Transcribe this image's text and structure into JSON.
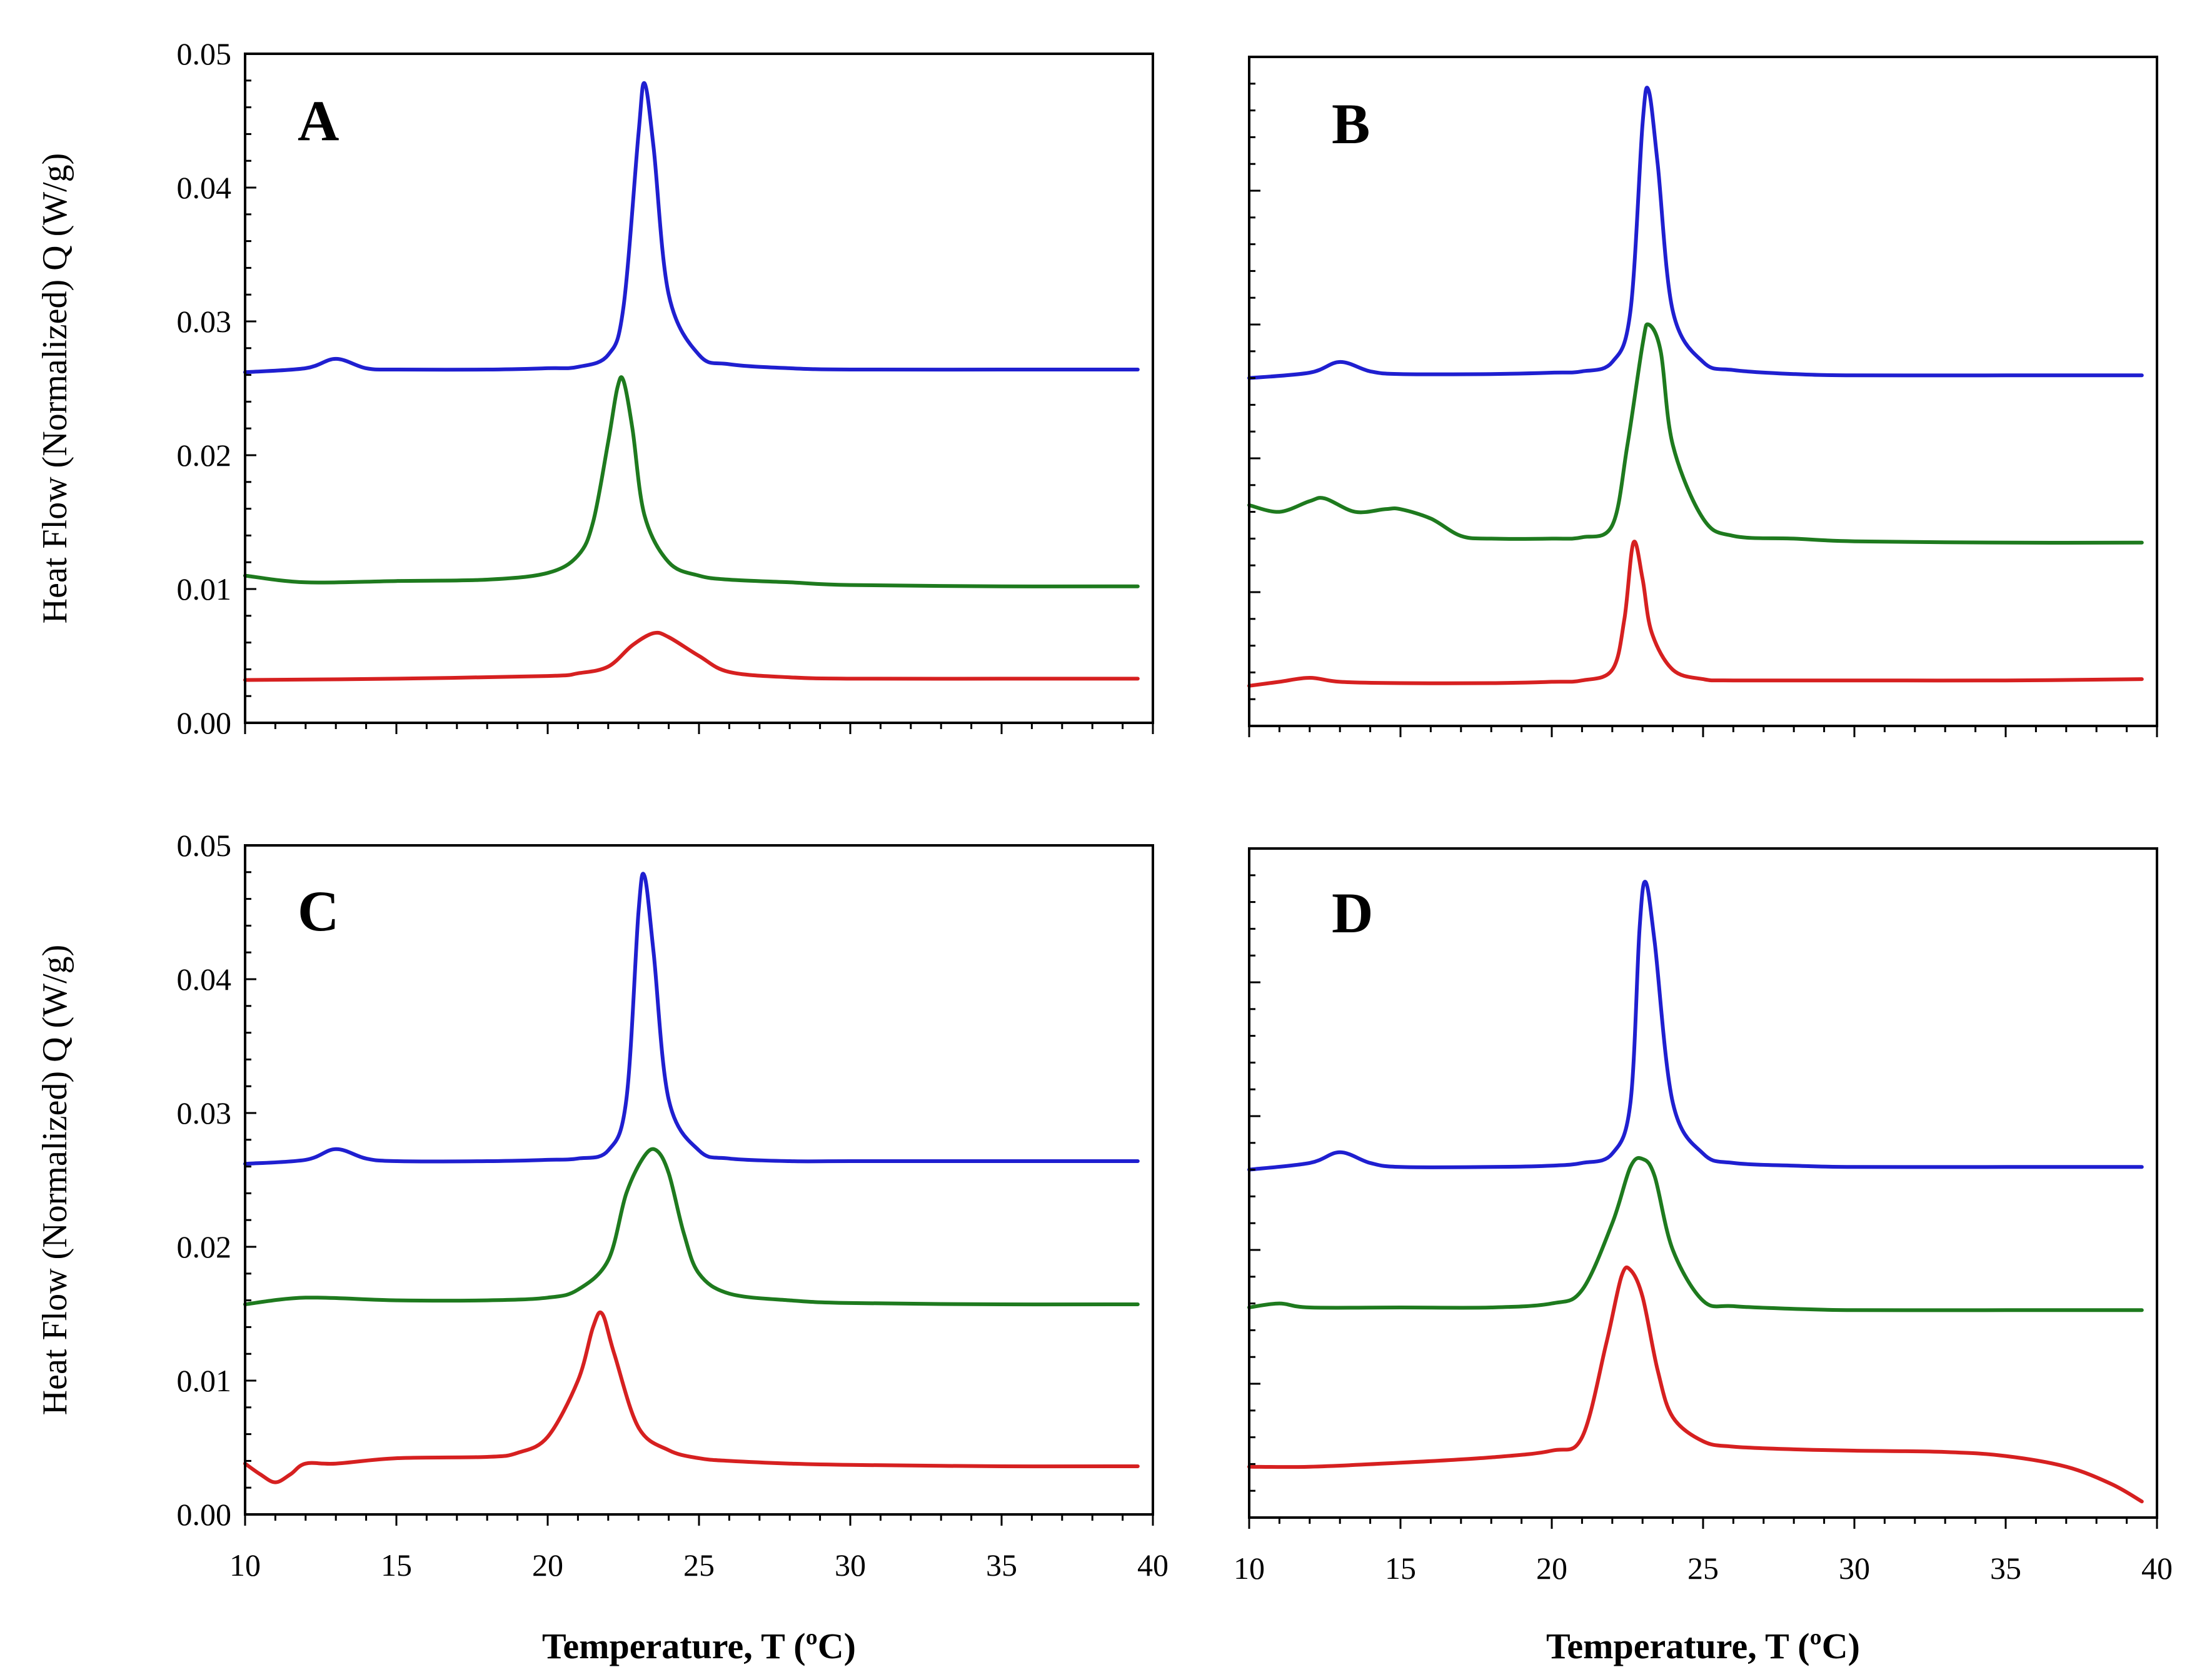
{
  "chart_data": [
    {
      "type": "line",
      "panel_label": "A",
      "xlabel": "",
      "ylabel": "Heat Flow (Normalized) Q (W/g)",
      "xlim": [
        10,
        40
      ],
      "ylim": [
        0,
        0.05
      ],
      "x_ticks": [],
      "y_ticks": [
        "0.00",
        "0.01",
        "0.02",
        "0.03",
        "0.04",
        "0.05"
      ],
      "series": [
        {
          "name": "blue",
          "color": "#1f1fd0",
          "x": [
            10,
            12,
            13,
            14,
            15,
            18,
            20,
            21,
            22,
            22.5,
            23,
            23.2,
            23.5,
            24,
            25,
            26,
            28,
            30,
            35,
            39.5
          ],
          "y": [
            0.0262,
            0.0265,
            0.0272,
            0.0265,
            0.0264,
            0.0264,
            0.0265,
            0.0266,
            0.0275,
            0.031,
            0.044,
            0.0478,
            0.043,
            0.032,
            0.0275,
            0.0268,
            0.0265,
            0.0264,
            0.0264,
            0.0264
          ]
        },
        {
          "name": "green",
          "color": "#1e7a1e",
          "x": [
            10,
            12,
            15,
            18,
            20,
            21,
            21.5,
            22,
            22.3,
            22.5,
            22.8,
            23.2,
            24,
            25,
            26,
            28,
            30,
            35,
            39.5
          ],
          "y": [
            0.011,
            0.0105,
            0.0106,
            0.0107,
            0.0112,
            0.0125,
            0.015,
            0.021,
            0.025,
            0.0256,
            0.022,
            0.0155,
            0.012,
            0.011,
            0.0107,
            0.0105,
            0.0103,
            0.0102,
            0.0102
          ]
        },
        {
          "name": "red",
          "color": "#d62020",
          "x": [
            10,
            15,
            20,
            21,
            22,
            22.8,
            23.5,
            24,
            25,
            26,
            28,
            30,
            35,
            39.5
          ],
          "y": [
            0.0032,
            0.0033,
            0.0035,
            0.0037,
            0.0042,
            0.0058,
            0.0067,
            0.0064,
            0.005,
            0.0038,
            0.0034,
            0.0033,
            0.0033,
            0.0033
          ]
        }
      ]
    },
    {
      "type": "line",
      "panel_label": "B",
      "xlabel": "",
      "ylabel": "",
      "xlim": [
        10,
        40
      ],
      "ylim": [
        0,
        0.05
      ],
      "x_ticks": [],
      "y_ticks": [],
      "series": [
        {
          "name": "blue",
          "color": "#1f1fd0",
          "x": [
            10,
            12,
            13,
            14,
            15,
            18,
            20,
            21,
            22,
            22.6,
            23.0,
            23.2,
            23.5,
            24,
            25,
            26,
            28,
            30,
            35,
            39.5
          ],
          "y": [
            0.026,
            0.0264,
            0.0272,
            0.0265,
            0.0263,
            0.0263,
            0.0264,
            0.0265,
            0.0272,
            0.031,
            0.045,
            0.0475,
            0.042,
            0.031,
            0.0272,
            0.0266,
            0.0263,
            0.0262,
            0.0262,
            0.0262
          ]
        },
        {
          "name": "green",
          "color": "#1e7a1e",
          "x": [
            10,
            11,
            12,
            12.5,
            13.5,
            14.5,
            15,
            16,
            17,
            18,
            20,
            21,
            22,
            22.5,
            23,
            23.2,
            23.6,
            24,
            25,
            26,
            28,
            30,
            35,
            39.5
          ],
          "y": [
            0.0165,
            0.016,
            0.0168,
            0.017,
            0.016,
            0.0162,
            0.0162,
            0.0155,
            0.0142,
            0.014,
            0.014,
            0.0141,
            0.015,
            0.021,
            0.0285,
            0.03,
            0.028,
            0.021,
            0.0155,
            0.0142,
            0.014,
            0.0138,
            0.0137,
            0.0137
          ]
        },
        {
          "name": "red",
          "color": "#d62020",
          "x": [
            10,
            11,
            12,
            13,
            15,
            18,
            20,
            21,
            22,
            22.4,
            22.7,
            23,
            23.3,
            24,
            25,
            26,
            30,
            35,
            39.5
          ],
          "y": [
            0.003,
            0.0033,
            0.0036,
            0.0033,
            0.0032,
            0.0032,
            0.0033,
            0.0034,
            0.0042,
            0.008,
            0.0137,
            0.011,
            0.007,
            0.0042,
            0.0035,
            0.0034,
            0.0034,
            0.0034,
            0.0035
          ]
        }
      ]
    },
    {
      "type": "line",
      "panel_label": "C",
      "xlabel": "Temperature, T (ºC)",
      "ylabel": "Heat Flow (Normalized) Q (W/g)",
      "xlim": [
        10,
        40
      ],
      "ylim": [
        0,
        0.05
      ],
      "x_ticks": [
        "10",
        "15",
        "20",
        "25",
        "30",
        "35",
        "40"
      ],
      "y_ticks": [
        "0.00",
        "0.01",
        "0.02",
        "0.03",
        "0.04",
        "0.05"
      ],
      "series": [
        {
          "name": "blue",
          "color": "#1f1fd0",
          "x": [
            10,
            12,
            13,
            14,
            15,
            18,
            20,
            21,
            22,
            22.6,
            23.0,
            23.2,
            23.5,
            24,
            25,
            26,
            28,
            30,
            35,
            39.5
          ],
          "y": [
            0.0262,
            0.0265,
            0.0273,
            0.0266,
            0.0264,
            0.0264,
            0.0265,
            0.0266,
            0.0272,
            0.031,
            0.045,
            0.0477,
            0.042,
            0.031,
            0.0272,
            0.0266,
            0.0264,
            0.0264,
            0.0264,
            0.0264
          ]
        },
        {
          "name": "green",
          "color": "#1e7a1e",
          "x": [
            10,
            12,
            15,
            18,
            20,
            21,
            22,
            22.6,
            23.2,
            23.6,
            24,
            24.5,
            25,
            26,
            28,
            30,
            35,
            39.5
          ],
          "y": [
            0.0157,
            0.0162,
            0.016,
            0.016,
            0.0162,
            0.0168,
            0.019,
            0.024,
            0.0268,
            0.0272,
            0.0255,
            0.021,
            0.018,
            0.0165,
            0.016,
            0.0158,
            0.0157,
            0.0157
          ]
        },
        {
          "name": "red",
          "color": "#d62020",
          "x": [
            10,
            10.5,
            11,
            11.5,
            12,
            13,
            15,
            18,
            19,
            20,
            21,
            21.5,
            21.8,
            22.2,
            23,
            24,
            25,
            26,
            28,
            30,
            35,
            39.5
          ],
          "y": [
            0.0038,
            0.003,
            0.0024,
            0.003,
            0.0038,
            0.0038,
            0.0042,
            0.0043,
            0.0046,
            0.0058,
            0.01,
            0.014,
            0.015,
            0.012,
            0.0065,
            0.0048,
            0.0042,
            0.004,
            0.0038,
            0.0037,
            0.0036,
            0.0036
          ]
        }
      ]
    },
    {
      "type": "line",
      "panel_label": "D",
      "xlabel": "Temperature, T (ºC)",
      "ylabel": "",
      "xlim": [
        10,
        40
      ],
      "ylim": [
        0,
        0.05
      ],
      "x_ticks": [
        "10",
        "15",
        "20",
        "25",
        "30",
        "35",
        "40"
      ],
      "y_ticks": [],
      "series": [
        {
          "name": "blue",
          "color": "#1f1fd0",
          "x": [
            10,
            12,
            13,
            14,
            15,
            18,
            20,
            21,
            22,
            22.6,
            22.9,
            23.1,
            23.4,
            24,
            25,
            26,
            28,
            30,
            35,
            39.5
          ],
          "y": [
            0.026,
            0.0265,
            0.0273,
            0.0265,
            0.0262,
            0.0262,
            0.0263,
            0.0265,
            0.0272,
            0.031,
            0.044,
            0.0475,
            0.043,
            0.031,
            0.0272,
            0.0265,
            0.0263,
            0.0262,
            0.0262,
            0.0262
          ]
        },
        {
          "name": "green",
          "color": "#1e7a1e",
          "x": [
            10,
            11,
            12,
            15,
            18,
            20,
            21,
            22,
            22.6,
            23,
            23.4,
            24,
            25,
            26,
            28,
            30,
            35,
            39.5
          ],
          "y": [
            0.0157,
            0.016,
            0.0157,
            0.0157,
            0.0157,
            0.016,
            0.017,
            0.022,
            0.0262,
            0.0268,
            0.0255,
            0.02,
            0.0162,
            0.0158,
            0.0156,
            0.0155,
            0.0155,
            0.0155
          ]
        },
        {
          "name": "red",
          "color": "#d62020",
          "x": [
            10,
            12,
            15,
            18,
            20,
            21,
            21.8,
            22.3,
            22.6,
            23,
            23.5,
            24,
            25,
            26,
            28,
            30,
            33,
            35,
            37,
            38.5,
            39.5
          ],
          "y": [
            0.0038,
            0.0038,
            0.0041,
            0.0045,
            0.005,
            0.006,
            0.013,
            0.018,
            0.0185,
            0.0165,
            0.011,
            0.0075,
            0.0057,
            0.0053,
            0.0051,
            0.005,
            0.0049,
            0.0046,
            0.0038,
            0.0025,
            0.0012
          ]
        }
      ]
    }
  ]
}
